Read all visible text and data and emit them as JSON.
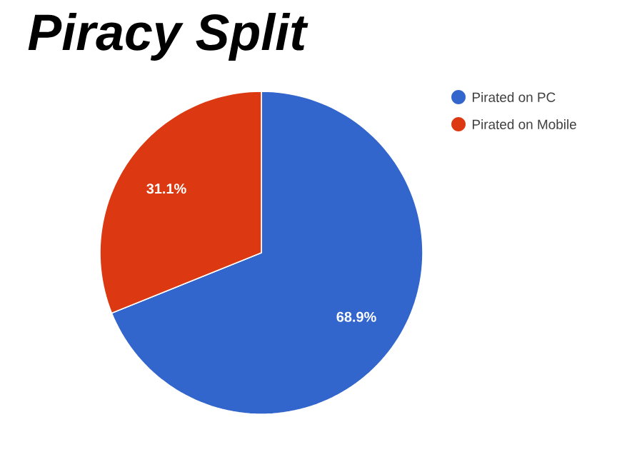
{
  "chart_data": {
    "type": "pie",
    "title": "Piracy Split",
    "categories": [
      "Pirated on PC",
      "Pirated on Mobile"
    ],
    "values": [
      68.9,
      31.1
    ],
    "colors": [
      "#3366cc",
      "#dc3912"
    ],
    "value_labels": [
      "68.9%",
      "31.1%"
    ],
    "legend": "top right"
  }
}
